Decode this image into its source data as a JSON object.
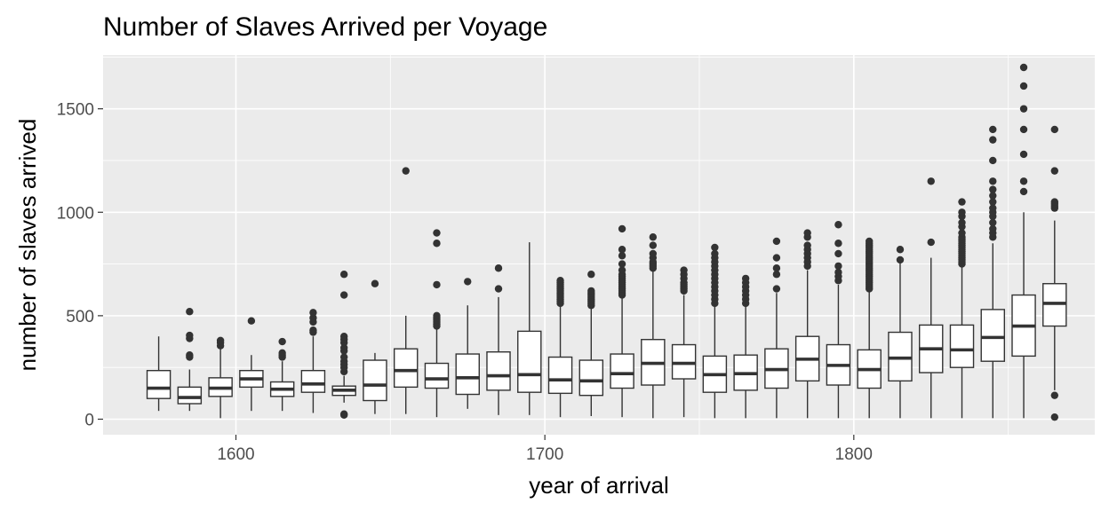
{
  "chart_data": {
    "type": "boxplot",
    "title": "Number of Slaves Arrived per Voyage",
    "xlabel": "year of arrival",
    "ylabel": "number of slaves arrived",
    "xlim": [
      1557,
      1878
    ],
    "ylim": [
      -75,
      1760
    ],
    "x_ticks": [
      1600,
      1700,
      1800
    ],
    "y_ticks": [
      0,
      500,
      1000,
      1500
    ],
    "grid": true,
    "legend": "none",
    "colors": {
      "panel_background": "#ebebeb",
      "grid": "#ffffff",
      "box_fill": "#ffffff",
      "box_line": "#333333",
      "outlier": "#333333"
    },
    "boxes": [
      {
        "x": 1575,
        "whisker_low": 40,
        "q1": 100,
        "median": 150,
        "q3": 235,
        "whisker_high": 400,
        "outliers": []
      },
      {
        "x": 1585,
        "whisker_low": 40,
        "q1": 75,
        "median": 105,
        "q3": 155,
        "whisker_high": 240,
        "outliers": [
          300,
          310,
          390,
          405,
          520
        ]
      },
      {
        "x": 1595,
        "whisker_low": 5,
        "q1": 110,
        "median": 150,
        "q3": 200,
        "whisker_high": 340,
        "outliers": [
          355,
          370,
          380
        ]
      },
      {
        "x": 1605,
        "whisker_low": 40,
        "q1": 155,
        "median": 195,
        "q3": 235,
        "whisker_high": 310,
        "outliers": [
          475
        ]
      },
      {
        "x": 1615,
        "whisker_low": 40,
        "q1": 110,
        "median": 145,
        "q3": 180,
        "whisker_high": 280,
        "outliers": [
          300,
          310,
          320,
          375
        ]
      },
      {
        "x": 1625,
        "whisker_low": 30,
        "q1": 130,
        "median": 170,
        "q3": 235,
        "whisker_high": 400,
        "outliers": [
          420,
          430,
          470,
          490,
          515
        ]
      },
      {
        "x": 1635,
        "whisker_low": 80,
        "q1": 115,
        "median": 140,
        "q3": 160,
        "whisker_high": 210,
        "outliers": [
          20,
          25,
          230,
          250,
          265,
          280,
          300,
          330,
          345,
          370,
          385,
          400,
          600,
          700
        ]
      },
      {
        "x": 1645,
        "whisker_low": 25,
        "q1": 90,
        "median": 165,
        "q3": 285,
        "whisker_high": 320,
        "outliers": [
          655
        ]
      },
      {
        "x": 1655,
        "whisker_low": 25,
        "q1": 155,
        "median": 235,
        "q3": 340,
        "whisker_high": 500,
        "outliers": [
          1200
        ]
      },
      {
        "x": 1665,
        "whisker_low": 10,
        "q1": 150,
        "median": 195,
        "q3": 270,
        "whisker_high": 440,
        "outliers": [
          450,
          460,
          470,
          480,
          490,
          500,
          650,
          850,
          900
        ]
      },
      {
        "x": 1675,
        "whisker_low": 50,
        "q1": 120,
        "median": 200,
        "q3": 315,
        "whisker_high": 550,
        "outliers": [
          665
        ]
      },
      {
        "x": 1685,
        "whisker_low": 20,
        "q1": 140,
        "median": 210,
        "q3": 325,
        "whisker_high": 590,
        "outliers": [
          630,
          730
        ]
      },
      {
        "x": 1695,
        "whisker_low": 20,
        "q1": 130,
        "median": 215,
        "q3": 425,
        "whisker_high": 855,
        "outliers": []
      },
      {
        "x": 1705,
        "whisker_low": 10,
        "q1": 125,
        "median": 190,
        "q3": 300,
        "whisker_high": 550,
        "outliers": [
          560,
          570,
          580,
          590,
          600,
          610,
          620,
          630,
          640,
          650,
          660,
          670
        ]
      },
      {
        "x": 1715,
        "whisker_low": 15,
        "q1": 115,
        "median": 185,
        "q3": 285,
        "whisker_high": 540,
        "outliers": [
          550,
          560,
          570,
          580,
          590,
          600,
          610,
          620,
          700
        ]
      },
      {
        "x": 1725,
        "whisker_low": 10,
        "q1": 150,
        "median": 220,
        "q3": 315,
        "whisker_high": 590,
        "outliers": [
          600,
          610,
          620,
          630,
          640,
          650,
          660,
          670,
          680,
          690,
          700,
          720,
          750,
          790,
          820,
          920
        ]
      },
      {
        "x": 1735,
        "whisker_low": 5,
        "q1": 165,
        "median": 270,
        "q3": 385,
        "whisker_high": 720,
        "outliers": [
          730,
          740,
          750,
          760,
          780,
          800,
          840,
          880
        ]
      },
      {
        "x": 1745,
        "whisker_low": 10,
        "q1": 195,
        "median": 270,
        "q3": 360,
        "whisker_high": 600,
        "outliers": [
          620,
          630,
          640,
          650,
          660,
          680,
          700,
          720
        ]
      },
      {
        "x": 1755,
        "whisker_low": 5,
        "q1": 130,
        "median": 215,
        "q3": 305,
        "whisker_high": 550,
        "outliers": [
          560,
          580,
          600,
          620,
          640,
          660,
          680,
          700,
          720,
          740,
          760,
          780,
          800,
          830
        ]
      },
      {
        "x": 1765,
        "whisker_low": 5,
        "q1": 140,
        "median": 220,
        "q3": 310,
        "whisker_high": 550,
        "outliers": [
          560,
          580,
          600,
          620,
          640,
          660,
          680
        ]
      },
      {
        "x": 1775,
        "whisker_low": 5,
        "q1": 150,
        "median": 240,
        "q3": 340,
        "whisker_high": 610,
        "outliers": [
          630,
          700,
          730,
          780,
          860
        ]
      },
      {
        "x": 1785,
        "whisker_low": 5,
        "q1": 185,
        "median": 290,
        "q3": 400,
        "whisker_high": 720,
        "outliers": [
          740,
          760,
          780,
          800,
          820,
          840,
          880,
          900
        ]
      },
      {
        "x": 1795,
        "whisker_low": 5,
        "q1": 165,
        "median": 260,
        "q3": 360,
        "whisker_high": 650,
        "outliers": [
          670,
          690,
          710,
          740,
          800,
          850,
          940
        ]
      },
      {
        "x": 1805,
        "whisker_low": 5,
        "q1": 150,
        "median": 240,
        "q3": 335,
        "whisker_high": 620,
        "outliers": [
          630,
          640,
          650,
          660,
          670,
          680,
          690,
          700,
          710,
          720,
          730,
          740,
          750,
          760,
          770,
          780,
          790,
          800,
          810,
          820,
          830,
          840,
          850,
          860
        ]
      },
      {
        "x": 1815,
        "whisker_low": 5,
        "q1": 185,
        "median": 295,
        "q3": 420,
        "whisker_high": 760,
        "outliers": [
          770,
          820
        ]
      },
      {
        "x": 1825,
        "whisker_low": 5,
        "q1": 225,
        "median": 340,
        "q3": 455,
        "whisker_high": 780,
        "outliers": [
          855,
          1150
        ]
      },
      {
        "x": 1835,
        "whisker_low": 5,
        "q1": 250,
        "median": 335,
        "q3": 455,
        "whisker_high": 740,
        "outliers": [
          750,
          760,
          770,
          780,
          790,
          800,
          810,
          820,
          830,
          840,
          850,
          860,
          870,
          880,
          900,
          930,
          950,
          980,
          1000,
          1050
        ]
      },
      {
        "x": 1845,
        "whisker_low": 5,
        "q1": 280,
        "median": 395,
        "q3": 530,
        "whisker_high": 850,
        "outliers": [
          880,
          900,
          920,
          950,
          980,
          1000,
          1020,
          1050,
          1080,
          1110,
          1150,
          1250,
          1350,
          1400
        ]
      },
      {
        "x": 1855,
        "whisker_low": 5,
        "q1": 305,
        "median": 450,
        "q3": 600,
        "whisker_high": 1000,
        "outliers": [
          1100,
          1150,
          1280,
          1400,
          1500,
          1610,
          1700
        ]
      },
      {
        "x": 1865,
        "whisker_low": 140,
        "q1": 450,
        "median": 560,
        "q3": 655,
        "whisker_high": 960,
        "outliers": [
          10,
          115,
          1020,
          1030,
          1040,
          1050,
          1200,
          1400
        ]
      }
    ]
  }
}
